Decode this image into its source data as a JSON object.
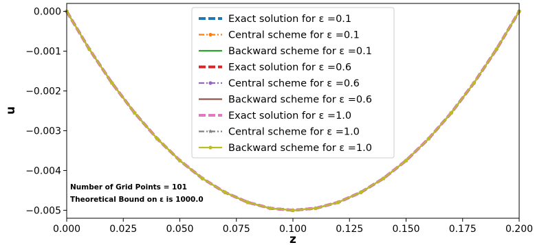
{
  "chart_data": {
    "type": "line",
    "xlabel": "z",
    "ylabel": "u",
    "xlim": [
      0.0,
      0.2
    ],
    "ylim": [
      -0.0052,
      0.0002
    ],
    "xticks": [
      0.0,
      0.025,
      0.05,
      0.075,
      0.1,
      0.125,
      0.15,
      0.175,
      0.2
    ],
    "xtick_labels": [
      "0.000",
      "0.025",
      "0.050",
      "0.075",
      "0.100",
      "0.125",
      "0.150",
      "0.175",
      "0.200"
    ],
    "yticks": [
      0.0,
      -0.001,
      -0.002,
      -0.003,
      -0.004,
      -0.005
    ],
    "ytick_labels": [
      "0.000",
      "−0.001",
      "−0.002",
      "−0.003",
      "−0.004",
      "−0.005"
    ],
    "grid": false,
    "legend_position": "top-center",
    "x": [
      0.0,
      0.01,
      0.02,
      0.03,
      0.04,
      0.05,
      0.06,
      0.07,
      0.08,
      0.09,
      0.1,
      0.11,
      0.12,
      0.13,
      0.14,
      0.15,
      0.16,
      0.17,
      0.18,
      0.19,
      0.2
    ],
    "series": [
      {
        "name": "Exact solution for ε =0.1",
        "color": "#1f77b4",
        "style": "thick-dashed",
        "marker": "point",
        "values": [
          0.0,
          -0.00095,
          -0.0018,
          -0.00255,
          -0.0032,
          -0.00375,
          -0.0042,
          -0.00455,
          -0.0048,
          -0.00495,
          -0.005,
          -0.00495,
          -0.0048,
          -0.00455,
          -0.0042,
          -0.00375,
          -0.0032,
          -0.00255,
          -0.0018,
          -0.00095,
          0.0
        ]
      },
      {
        "name": "Central scheme for ε =0.1",
        "color": "#ff7f0e",
        "style": "dashdot",
        "marker": "circle",
        "values": [
          0.0,
          -0.00095,
          -0.0018,
          -0.00255,
          -0.0032,
          -0.00375,
          -0.0042,
          -0.00455,
          -0.0048,
          -0.00495,
          -0.005,
          -0.00495,
          -0.0048,
          -0.00455,
          -0.0042,
          -0.00375,
          -0.0032,
          -0.00255,
          -0.0018,
          -0.00095,
          0.0
        ]
      },
      {
        "name": "Backward scheme for ε =0.1",
        "color": "#2ca02c",
        "style": "solid",
        "marker": "none",
        "values": [
          0.0,
          -0.00095,
          -0.0018,
          -0.00255,
          -0.0032,
          -0.00375,
          -0.0042,
          -0.00455,
          -0.0048,
          -0.00495,
          -0.005,
          -0.00495,
          -0.0048,
          -0.00455,
          -0.0042,
          -0.00375,
          -0.0032,
          -0.00255,
          -0.0018,
          -0.00095,
          0.0
        ]
      },
      {
        "name": "Exact solution for ε =0.6",
        "color": "#d62728",
        "style": "thick-dashed",
        "marker": "point",
        "values": [
          0.0,
          -0.00095,
          -0.0018,
          -0.00255,
          -0.0032,
          -0.00375,
          -0.0042,
          -0.00455,
          -0.0048,
          -0.00495,
          -0.005,
          -0.00495,
          -0.0048,
          -0.00455,
          -0.0042,
          -0.00375,
          -0.0032,
          -0.00255,
          -0.0018,
          -0.00095,
          0.0
        ]
      },
      {
        "name": "Central scheme for ε =0.6",
        "color": "#9467bd",
        "style": "dashdot",
        "marker": "circle",
        "values": [
          0.0,
          -0.00095,
          -0.0018,
          -0.00255,
          -0.0032,
          -0.00375,
          -0.0042,
          -0.00455,
          -0.0048,
          -0.00495,
          -0.005,
          -0.00495,
          -0.0048,
          -0.00455,
          -0.0042,
          -0.00375,
          -0.0032,
          -0.00255,
          -0.0018,
          -0.00095,
          0.0
        ]
      },
      {
        "name": "Backward scheme for ε =0.6",
        "color": "#8c564b",
        "style": "solid",
        "marker": "none",
        "values": [
          0.0,
          -0.00095,
          -0.0018,
          -0.00255,
          -0.0032,
          -0.00375,
          -0.0042,
          -0.00455,
          -0.0048,
          -0.00495,
          -0.005,
          -0.00495,
          -0.0048,
          -0.00455,
          -0.0042,
          -0.00375,
          -0.0032,
          -0.00255,
          -0.0018,
          -0.00095,
          0.0
        ]
      },
      {
        "name": "Exact solution for ε =1.0",
        "color": "#e377c2",
        "style": "thick-dashed",
        "marker": "point",
        "values": [
          0.0,
          -0.00095,
          -0.0018,
          -0.00255,
          -0.0032,
          -0.00375,
          -0.0042,
          -0.00455,
          -0.0048,
          -0.00495,
          -0.005,
          -0.00495,
          -0.0048,
          -0.00455,
          -0.0042,
          -0.00375,
          -0.0032,
          -0.00255,
          -0.0018,
          -0.00095,
          0.0
        ]
      },
      {
        "name": "Central scheme for ε =1.0",
        "color": "#7f7f7f",
        "style": "dashdot",
        "marker": "star",
        "values": [
          0.0,
          -0.00095,
          -0.0018,
          -0.00255,
          -0.0032,
          -0.00375,
          -0.0042,
          -0.00455,
          -0.0048,
          -0.00495,
          -0.005,
          -0.00495,
          -0.0048,
          -0.00455,
          -0.0042,
          -0.00375,
          -0.0032,
          -0.00255,
          -0.0018,
          -0.00095,
          0.0
        ]
      },
      {
        "name": "Backward scheme for ε =1.0",
        "color": "#bcbd22",
        "style": "solid",
        "marker": "circle",
        "values": [
          0.0,
          -0.00095,
          -0.0018,
          -0.00255,
          -0.0032,
          -0.00375,
          -0.0042,
          -0.00455,
          -0.0048,
          -0.00495,
          -0.005,
          -0.00495,
          -0.0048,
          -0.00455,
          -0.0042,
          -0.00375,
          -0.0032,
          -0.00255,
          -0.0018,
          -0.00095,
          0.0
        ]
      }
    ],
    "annotations": [
      "Number of Grid Points = 101",
      "Theoretical Bound on ε is 1000.0"
    ]
  }
}
